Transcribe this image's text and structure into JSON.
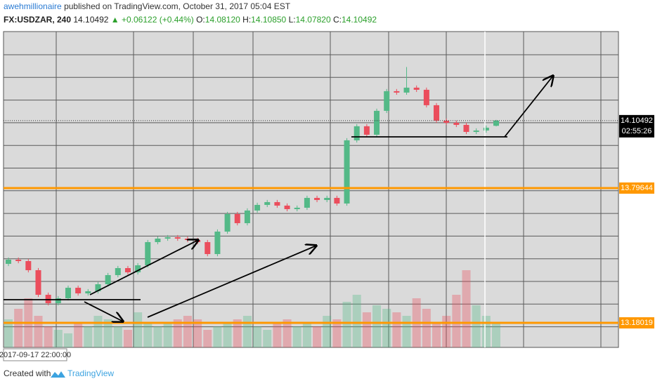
{
  "header": {
    "author": "awehmillionaire",
    "published": "published on TradingView.com, October 31, 2017 05:04 EST",
    "symbol": "FX:USDZAR, 240",
    "last": "14.10492",
    "change": "▲ +0.06122 (+0.44%)",
    "ohlc": [
      {
        "key": "O:",
        "value": "14.08120"
      },
      {
        "key": "H:",
        "value": "14.10850"
      },
      {
        "key": "L:",
        "value": "14.07820"
      },
      {
        "key": "C:",
        "value": "14.10492"
      }
    ]
  },
  "chart_data": {
    "type": "candlestick",
    "open": [
      13.45,
      13.4691,
      13.4627,
      13.421,
      13.3086,
      13.2701,
      13.2926,
      13.3407,
      13.315,
      13.3247,
      13.3568,
      13.3985,
      13.4306,
      13.4113,
      13.4434,
      13.5494,
      13.5654,
      13.5718,
      13.5654,
      13.559,
      13.5494,
      13.4948,
      13.5975,
      13.6778,
      13.636,
      13.6938,
      13.7195,
      13.7323,
      13.7163,
      13.7002,
      13.7066,
      13.7516,
      13.742,
      13.7516,
      13.7259,
      14.0148,
      14.079,
      14.0405,
      14.1496,
      14.2395,
      14.2331,
      14.2556,
      14.2459,
      14.1753,
      14.1047,
      14.0951,
      14.0854,
      14.0533,
      14.0597,
      14.0812
    ],
    "high": [
      13.4791,
      13.4791,
      13.4727,
      13.431,
      13.3186,
      13.3026,
      13.3507,
      13.3507,
      13.3347,
      13.3668,
      13.4085,
      13.4406,
      13.4406,
      13.4534,
      13.5594,
      13.5754,
      13.5818,
      13.5818,
      13.5754,
      13.569,
      13.5594,
      13.6075,
      13.6878,
      13.6878,
      13.7038,
      13.7295,
      13.7423,
      13.7423,
      13.7263,
      13.7166,
      13.7616,
      13.7616,
      13.7616,
      13.7616,
      14.0248,
      14.089,
      14.089,
      14.1596,
      14.2495,
      14.2495,
      14.35,
      14.2656,
      14.2559,
      14.1853,
      14.1147,
      14.1051,
      14.0954,
      14.0697,
      14.0826,
      14.1085
    ],
    "low": [
      13.44,
      13.4527,
      13.411,
      13.2986,
      13.2601,
      13.2601,
      13.2826,
      13.305,
      13.305,
      13.3147,
      13.3468,
      13.3885,
      13.4013,
      13.4013,
      13.4334,
      13.5394,
      13.5554,
      13.5554,
      13.549,
      13.5394,
      13.4848,
      13.4848,
      13.5875,
      13.626,
      13.626,
      13.6838,
      13.7095,
      13.7063,
      13.6902,
      13.6902,
      13.6966,
      13.732,
      13.732,
      13.7159,
      13.7159,
      14.0048,
      14.0305,
      14.0305,
      14.1396,
      14.2231,
      14.2231,
      14.2359,
      14.1653,
      14.0947,
      14.0851,
      14.0754,
      14.0433,
      14.0433,
      14.0497,
      14.0782
    ],
    "close": [
      13.4691,
      13.4627,
      13.421,
      13.3086,
      13.2701,
      13.2926,
      13.3407,
      13.315,
      13.3247,
      13.3568,
      13.3985,
      13.4306,
      13.4113,
      13.4434,
      13.5494,
      13.5654,
      13.5718,
      13.5654,
      13.559,
      13.5494,
      13.4948,
      13.5975,
      13.6778,
      13.636,
      13.6938,
      13.7195,
      13.7323,
      13.7163,
      13.7002,
      13.7066,
      13.7516,
      13.742,
      13.7516,
      13.7259,
      14.0148,
      14.079,
      14.0405,
      14.1496,
      14.2395,
      14.2331,
      14.2556,
      14.2459,
      14.1753,
      14.1047,
      14.0951,
      14.0854,
      14.0533,
      14.0597,
      14.0726,
      14.1049
    ],
    "volume": [
      40,
      55,
      70,
      45,
      30,
      25,
      20,
      35,
      30,
      45,
      40,
      30,
      25,
      50,
      35,
      30,
      35,
      40,
      45,
      40,
      25,
      30,
      35,
      40,
      45,
      30,
      25,
      35,
      40,
      30,
      35,
      30,
      45,
      40,
      65,
      75,
      50,
      60,
      55,
      50,
      45,
      70,
      55,
      35,
      45,
      75,
      110,
      60,
      45,
      35
    ],
    "ylim": [
      13.068,
      14.512
    ],
    "up_color": "#53b987",
    "down_color": "#eb4d5c",
    "levels": [
      {
        "value": 13.79644,
        "color": "#ff9800"
      },
      {
        "value": 13.18019,
        "color": "#ff9800"
      }
    ],
    "last_price": 14.10492,
    "countdown": "02:55:26",
    "cursor_time": "2017-09-17 22:00:00"
  },
  "footer": {
    "created": "Created with",
    "brand": "TradingView"
  }
}
